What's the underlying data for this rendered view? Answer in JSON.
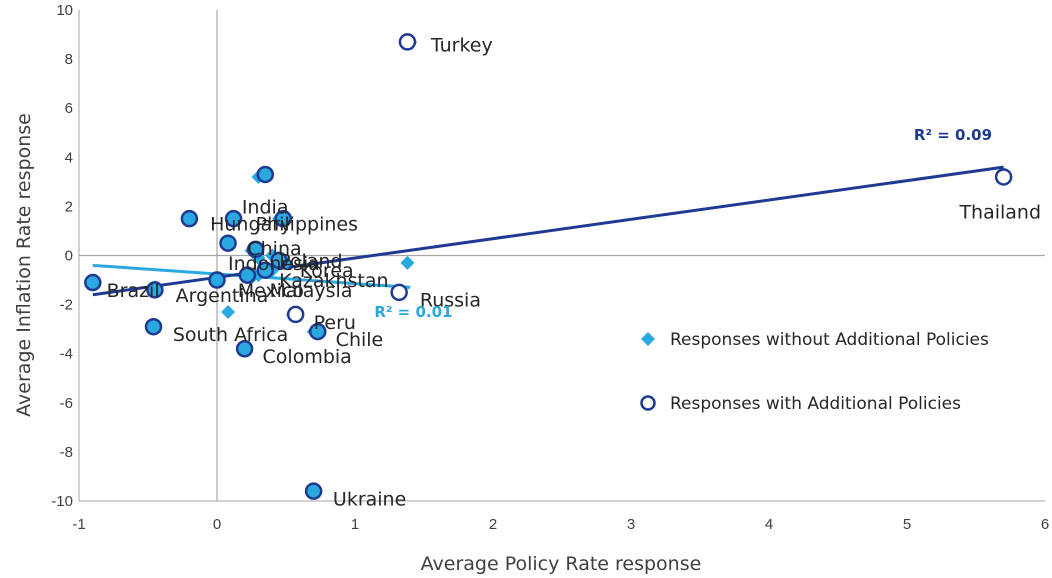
{
  "chart_data": {
    "type": "scatter",
    "xlabel": "Average Policy Rate response",
    "ylabel": "Average Inflation Rate response",
    "xlim": [
      -1,
      6
    ],
    "ylim": [
      -10,
      10
    ],
    "x_ticks": [
      "-1",
      "0",
      "1",
      "2",
      "3",
      "4",
      "5",
      "6"
    ],
    "y_ticks": [
      "-10",
      "-8",
      "-6",
      "-4",
      "-2",
      "0",
      "2",
      "4",
      "6",
      "8",
      "10"
    ],
    "grid": false,
    "legend_position": "right",
    "colors": {
      "with": "#1f3a93",
      "without": "#2aa8e0",
      "axis": "#a6a6a6"
    },
    "series": [
      {
        "name": "Responses without Additional Policies",
        "marker": "diamond",
        "points": [
          {
            "label": "Turkey",
            "x": 1.4,
            "y": 8.7
          },
          {
            "label": "Thailand",
            "x": 5.7,
            "y": 3.2
          },
          {
            "label": "India",
            "x": 0.3,
            "y": 3.2
          },
          {
            "label": "Hungary",
            "x": -0.2,
            "y": 1.5
          },
          {
            "label": "Philippines",
            "x": 0.45,
            "y": 1.5
          },
          {
            "label": "China",
            "x": 0.25,
            "y": 0.2
          },
          {
            "label": "Poland",
            "x": 0.4,
            "y": 0.0
          },
          {
            "label": "Indonesia",
            "x": 0.3,
            "y": -0.1
          },
          {
            "label": "Korea",
            "x": 0.5,
            "y": -0.3
          },
          {
            "label": "Kazakhstan",
            "x": 0.4,
            "y": -0.6
          },
          {
            "label": "Malaysia",
            "x": 0.3,
            "y": -0.8
          },
          {
            "label": "Mexico",
            "x": 0.25,
            "y": -0.9
          },
          {
            "label": "Brazil",
            "x": -0.9,
            "y": -1.1
          },
          {
            "label": "Argentina",
            "x": -0.45,
            "y": -1.3
          },
          {
            "label": "Russia",
            "x": 1.38,
            "y": -0.3
          },
          {
            "label": "Peru",
            "x": 0.55,
            "y": -2.4
          },
          {
            "label": "South Africa",
            "x": 0.08,
            "y": -2.3
          },
          {
            "label": "Chile",
            "x": 0.7,
            "y": -3.1
          },
          {
            "label": "Colombia",
            "x": 0.2,
            "y": -3.8
          },
          {
            "label": "Ukraine",
            "x": 0.7,
            "y": -9.6
          }
        ],
        "trend": {
          "x": [
            -0.9,
            1.4
          ],
          "y": [
            -0.4,
            -1.3
          ],
          "r2": "R² = 0.01"
        }
      },
      {
        "name": "Responses with Additional Policies",
        "marker": "open-circle",
        "points": [
          {
            "label": "Turkey",
            "x": 1.38,
            "y": 8.7
          },
          {
            "label": "Thailand",
            "x": 5.7,
            "y": 3.2
          },
          {
            "label": "India",
            "x": 0.35,
            "y": 3.3
          },
          {
            "label": "Hungary",
            "x": -0.2,
            "y": 1.5
          },
          {
            "label": "Philippines",
            "x": 0.48,
            "y": 1.5
          },
          {
            "label": "Indonesia",
            "x": 0.12,
            "y": 1.5
          },
          {
            "label": "China",
            "x": 0.08,
            "y": 0.5
          },
          {
            "label": "Poland",
            "x": 0.28,
            "y": 0.25
          },
          {
            "label": "Korea",
            "x": 0.45,
            "y": -0.2
          },
          {
            "label": "Kazakhstan",
            "x": 0.35,
            "y": -0.6
          },
          {
            "label": "Malaysia",
            "x": 0.22,
            "y": -0.8
          },
          {
            "label": "Mexico",
            "x": 0.0,
            "y": -1.0
          },
          {
            "label": "Brazil",
            "x": -0.9,
            "y": -1.1
          },
          {
            "label": "Argentina",
            "x": -0.45,
            "y": -1.4
          },
          {
            "label": "Russia",
            "x": 1.32,
            "y": -1.5
          },
          {
            "label": "Peru",
            "x": 0.57,
            "y": -2.4
          },
          {
            "label": "South Africa",
            "x": -0.46,
            "y": -2.9
          },
          {
            "label": "Chile",
            "x": 0.73,
            "y": -3.1
          },
          {
            "label": "Colombia",
            "x": 0.2,
            "y": -3.8
          },
          {
            "label": "Ukraine",
            "x": 0.7,
            "y": -9.6
          }
        ],
        "trend": {
          "x": [
            -0.9,
            5.7
          ],
          "y": [
            -1.6,
            3.6
          ],
          "r2": "R² = 0.09"
        }
      }
    ],
    "point_labels": [
      {
        "text": "Turkey",
        "x": 1.55,
        "y": 8.6
      },
      {
        "text": "Thailand",
        "x": 5.38,
        "y": 1.8
      },
      {
        "text": "India",
        "x": 0.18,
        "y": 2.0
      },
      {
        "text": "Hungary",
        "x": -0.05,
        "y": 1.3
      },
      {
        "text": "Philippines",
        "x": 0.28,
        "y": 1.3
      },
      {
        "text": "China",
        "x": 0.22,
        "y": 0.3
      },
      {
        "text": "Indonesia",
        "x": 0.08,
        "y": -0.3
      },
      {
        "text": "Poland",
        "x": 0.45,
        "y": -0.2
      },
      {
        "text": "Korea",
        "x": 0.6,
        "y": -0.6
      },
      {
        "text": "Kazakhstan",
        "x": 0.45,
        "y": -1.0
      },
      {
        "text": "Malaysia",
        "x": 0.38,
        "y": -1.4
      },
      {
        "text": "Mexico",
        "x": 0.15,
        "y": -1.4
      },
      {
        "text": "Brazil",
        "x": -0.8,
        "y": -1.4
      },
      {
        "text": "Argentina",
        "x": -0.3,
        "y": -1.6
      },
      {
        "text": "Russia",
        "x": 1.47,
        "y": -1.8
      },
      {
        "text": "Peru",
        "x": 0.7,
        "y": -2.7
      },
      {
        "text": "South Africa",
        "x": -0.32,
        "y": -3.2
      },
      {
        "text": "Chile",
        "x": 0.86,
        "y": -3.4
      },
      {
        "text": "Colombia",
        "x": 0.33,
        "y": -4.1
      },
      {
        "text": "Ukraine",
        "x": 0.84,
        "y": -9.9
      }
    ]
  }
}
